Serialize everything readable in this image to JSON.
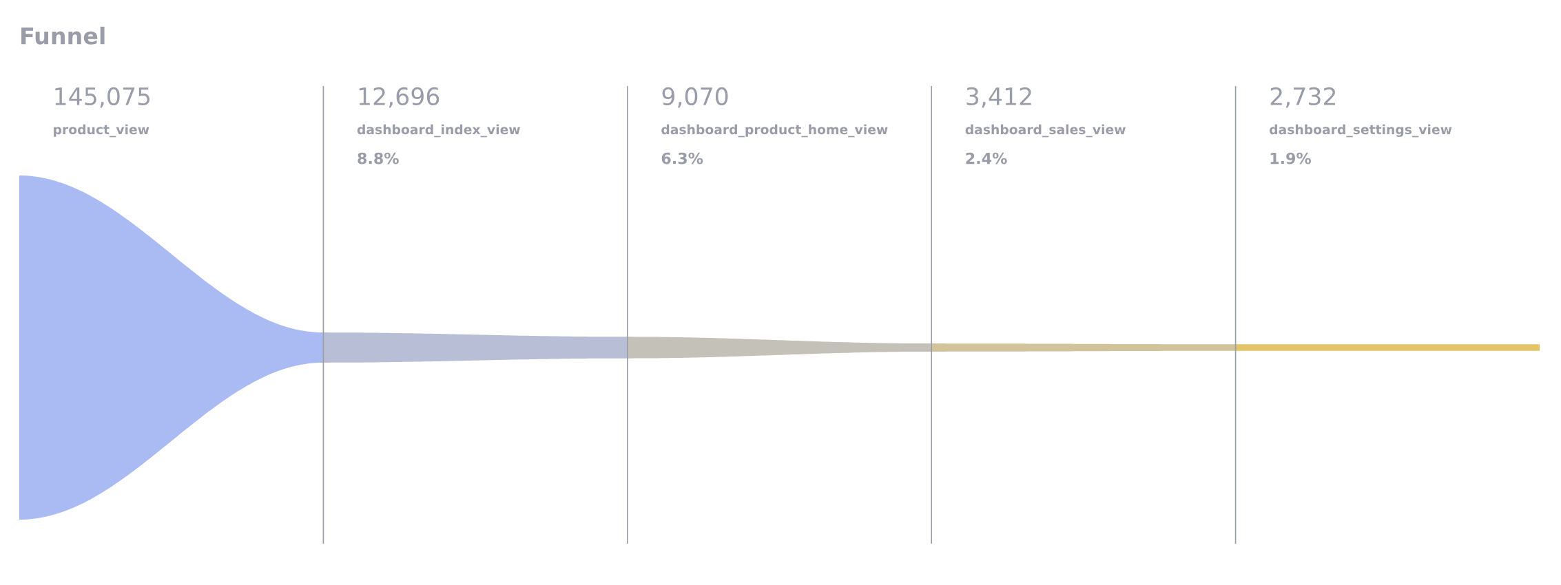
{
  "chart_data": {
    "type": "other",
    "title": "Funnel",
    "categories": [
      "product_view",
      "dashboard_index_view",
      "dashboard_product_home_view",
      "dashboard_sales_view",
      "dashboard_settings_view"
    ],
    "values": [
      145075,
      12696,
      9070,
      3412,
      2732
    ],
    "value_labels": [
      "145,075",
      "12,696",
      "9,070",
      "3,412",
      "2,732"
    ],
    "colors": [
      "#aabaf3",
      "#b8bed6",
      "#c4c1b8",
      "#d2c39a",
      "#e3c568"
    ],
    "annotations": [
      "8.8%",
      "6.3%",
      "2.4%",
      "1.9%"
    ]
  }
}
